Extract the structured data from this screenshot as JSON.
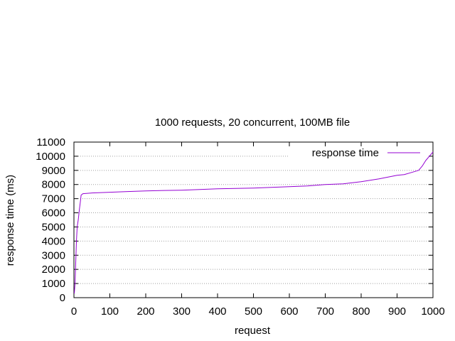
{
  "chart_data": {
    "type": "line",
    "title": "1000 requests, 20 concurrent, 100MB file",
    "xlabel": "request",
    "ylabel": "response time (ms)",
    "xlim": [
      0,
      1000
    ],
    "ylim": [
      0,
      11000
    ],
    "xticks": [
      0,
      100,
      200,
      300,
      400,
      500,
      600,
      700,
      800,
      900,
      1000
    ],
    "yticks": [
      0,
      1000,
      2000,
      3000,
      4000,
      5000,
      6000,
      7000,
      8000,
      9000,
      10000,
      11000
    ],
    "grid": "horizontal-dotted",
    "legend_position": "top-right",
    "series": [
      {
        "name": "response time",
        "color": "#9400d3",
        "x": [
          1,
          3,
          5,
          7,
          9,
          12,
          15,
          18,
          20,
          25,
          50,
          100,
          150,
          200,
          250,
          300,
          350,
          400,
          450,
          500,
          550,
          600,
          650,
          700,
          750,
          800,
          850,
          870,
          890,
          900,
          920,
          940,
          960,
          970,
          980,
          990,
          1000
        ],
        "y": [
          300,
          1000,
          2500,
          4000,
          5000,
          5500,
          6200,
          6800,
          7250,
          7350,
          7400,
          7450,
          7500,
          7550,
          7580,
          7600,
          7650,
          7700,
          7720,
          7750,
          7800,
          7850,
          7900,
          8000,
          8050,
          8200,
          8400,
          8500,
          8600,
          8650,
          8700,
          8850,
          9000,
          9300,
          9700,
          10000,
          10300
        ]
      }
    ]
  }
}
